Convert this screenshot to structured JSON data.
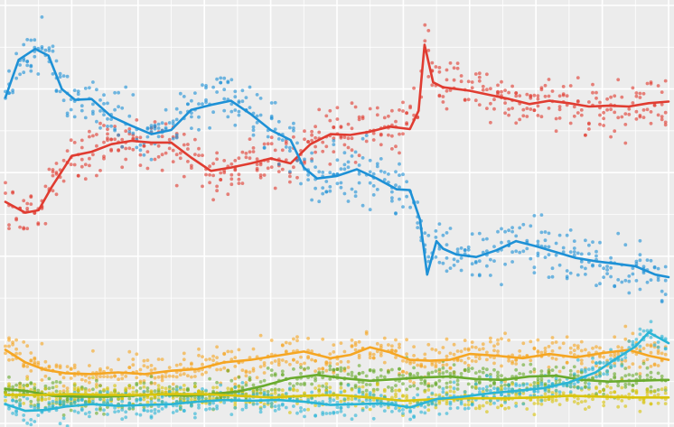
{
  "chart_data": {
    "type": "scatter",
    "title": "",
    "xlabel": "",
    "ylabel": "",
    "x_range": [
      0,
      100
    ],
    "y_range": [
      0,
      50
    ],
    "grid": true,
    "legend": "none",
    "background_color": "#ececec",
    "grid_color": "#ffffff",
    "series": [
      {
        "color": "#e03c31",
        "spread": 2.2,
        "trend": [
          [
            0,
            26.5
          ],
          [
            3,
            25.2
          ],
          [
            5,
            25.5
          ],
          [
            7,
            28.3
          ],
          [
            10,
            32
          ],
          [
            13,
            32.5
          ],
          [
            16,
            33.4
          ],
          [
            19,
            33.8
          ],
          [
            22,
            33.6
          ],
          [
            25,
            33.6
          ],
          [
            28,
            31.8
          ],
          [
            31,
            30.2
          ],
          [
            34,
            30.6
          ],
          [
            37,
            31.1
          ],
          [
            40,
            31.7
          ],
          [
            43,
            31.1
          ],
          [
            46,
            33.4
          ],
          [
            49,
            34.6
          ],
          [
            52,
            34.5
          ],
          [
            55,
            34.9
          ],
          [
            58,
            35.5
          ],
          [
            61,
            35.2
          ],
          [
            62.3,
            37.4
          ],
          [
            63.2,
            45.3
          ],
          [
            64.5,
            40.8
          ],
          [
            66,
            40.2
          ],
          [
            68,
            40
          ],
          [
            70,
            39.8
          ],
          [
            73,
            39.3
          ],
          [
            76,
            38.8
          ],
          [
            79,
            38.2
          ],
          [
            82,
            38.6
          ],
          [
            85,
            38.3
          ],
          [
            88,
            37.9
          ],
          [
            91,
            38
          ],
          [
            94,
            37.9
          ],
          [
            97,
            38.3
          ],
          [
            100,
            38.5
          ]
        ]
      },
      {
        "color": "#1e91d6",
        "spread": 2.4,
        "trend": [
          [
            0,
            39
          ],
          [
            2,
            43.5
          ],
          [
            4.5,
            44.8
          ],
          [
            6.5,
            44
          ],
          [
            8.5,
            40
          ],
          [
            10.5,
            38.7
          ],
          [
            13,
            38.8
          ],
          [
            16,
            36.7
          ],
          [
            19,
            35.6
          ],
          [
            22,
            34.6
          ],
          [
            25,
            35.1
          ],
          [
            28,
            37.5
          ],
          [
            31,
            38.1
          ],
          [
            34,
            38.6
          ],
          [
            37,
            37
          ],
          [
            40,
            35.1
          ],
          [
            43,
            33.9
          ],
          [
            45,
            30.6
          ],
          [
            47,
            29.3
          ],
          [
            50,
            29.6
          ],
          [
            53,
            30.4
          ],
          [
            56,
            29.3
          ],
          [
            59,
            28
          ],
          [
            61,
            27.9
          ],
          [
            62.5,
            24.4
          ],
          [
            63.6,
            17.8
          ],
          [
            65,
            21.8
          ],
          [
            66,
            20.9
          ],
          [
            68,
            20.2
          ],
          [
            71,
            19.9
          ],
          [
            74,
            20.7
          ],
          [
            77,
            21.8
          ],
          [
            80,
            21.2
          ],
          [
            83,
            20.5
          ],
          [
            86,
            19.8
          ],
          [
            89,
            19.4
          ],
          [
            92,
            19.1
          ],
          [
            95,
            18.8
          ],
          [
            98,
            17.8
          ],
          [
            100,
            17.5
          ]
        ]
      },
      {
        "color": "#f5a623",
        "spread": 1.6,
        "trend": [
          [
            0,
            8.8
          ],
          [
            3,
            7.3
          ],
          [
            6,
            6.4
          ],
          [
            9,
            6
          ],
          [
            13,
            5.9
          ],
          [
            17,
            6.1
          ],
          [
            21,
            5.9
          ],
          [
            25,
            6.3
          ],
          [
            29,
            6.5
          ],
          [
            33,
            7.3
          ],
          [
            37,
            7.6
          ],
          [
            41,
            8.1
          ],
          [
            45,
            8.6
          ],
          [
            49,
            7.8
          ],
          [
            52,
            8.2
          ],
          [
            55,
            9.1
          ],
          [
            58,
            8.5
          ],
          [
            61,
            7.6
          ],
          [
            64,
            7.5
          ],
          [
            67,
            7.6
          ],
          [
            70,
            8.3
          ],
          [
            74,
            8.1
          ],
          [
            78,
            7.8
          ],
          [
            82,
            8.3
          ],
          [
            86,
            7.9
          ],
          [
            90,
            8.4
          ],
          [
            94,
            8.8
          ],
          [
            97,
            8.1
          ],
          [
            100,
            7.6
          ]
        ]
      },
      {
        "color": "#6aab2e",
        "spread": 1.3,
        "trend": [
          [
            0,
            4.1
          ],
          [
            3,
            3.9
          ],
          [
            7,
            3.3
          ],
          [
            11,
            3.2
          ],
          [
            15,
            3.2
          ],
          [
            19,
            3.3
          ],
          [
            23,
            3.5
          ],
          [
            27,
            3.3
          ],
          [
            31,
            3.5
          ],
          [
            35,
            3.8
          ],
          [
            39,
            4.5
          ],
          [
            43,
            5.4
          ],
          [
            47,
            5.8
          ],
          [
            51,
            5.4
          ],
          [
            55,
            5.1
          ],
          [
            59,
            5.3
          ],
          [
            63,
            5.5
          ],
          [
            67,
            5.6
          ],
          [
            71,
            5.3
          ],
          [
            75,
            5.2
          ],
          [
            79,
            5.6
          ],
          [
            83,
            5.7
          ],
          [
            87,
            5.2
          ],
          [
            91,
            5
          ],
          [
            95,
            5.1
          ],
          [
            100,
            5.2
          ]
        ]
      },
      {
        "color": "#d9c40c",
        "spread": 1.1,
        "trend": [
          [
            0,
            3.4
          ],
          [
            5,
            3.4
          ],
          [
            10,
            3.5
          ],
          [
            15,
            3.4
          ],
          [
            20,
            3.4
          ],
          [
            25,
            3.5
          ],
          [
            30,
            3.5
          ],
          [
            35,
            3.3
          ],
          [
            40,
            3.1
          ],
          [
            45,
            3.3
          ],
          [
            50,
            3.4
          ],
          [
            55,
            3.1
          ],
          [
            60,
            2.7
          ],
          [
            65,
            2.9
          ],
          [
            70,
            3
          ],
          [
            75,
            3
          ],
          [
            80,
            3.1
          ],
          [
            85,
            3.3
          ],
          [
            90,
            3.2
          ],
          [
            95,
            3.1
          ],
          [
            100,
            3.1
          ]
        ]
      },
      {
        "color": "#2bb5d6",
        "spread": 1.2,
        "trend": [
          [
            0,
            2.3
          ],
          [
            3,
            1.5
          ],
          [
            6,
            1.6
          ],
          [
            9,
            2
          ],
          [
            13,
            2.3
          ],
          [
            17,
            2.1
          ],
          [
            21,
            2.2
          ],
          [
            25,
            2.3
          ],
          [
            29,
            2.6
          ],
          [
            33,
            2.8
          ],
          [
            37,
            2.7
          ],
          [
            41,
            2.8
          ],
          [
            45,
            2.6
          ],
          [
            49,
            2.2
          ],
          [
            53,
            2.3
          ],
          [
            57,
            2.4
          ],
          [
            61,
            1.9
          ],
          [
            65,
            2.9
          ],
          [
            69,
            3.2
          ],
          [
            73,
            3.6
          ],
          [
            77,
            3.9
          ],
          [
            81,
            4.2
          ],
          [
            85,
            4.9
          ],
          [
            89,
            6.1
          ],
          [
            92,
            7.7
          ],
          [
            95,
            9.2
          ],
          [
            97,
            10.9
          ],
          [
            100,
            9.6
          ]
        ]
      }
    ]
  }
}
